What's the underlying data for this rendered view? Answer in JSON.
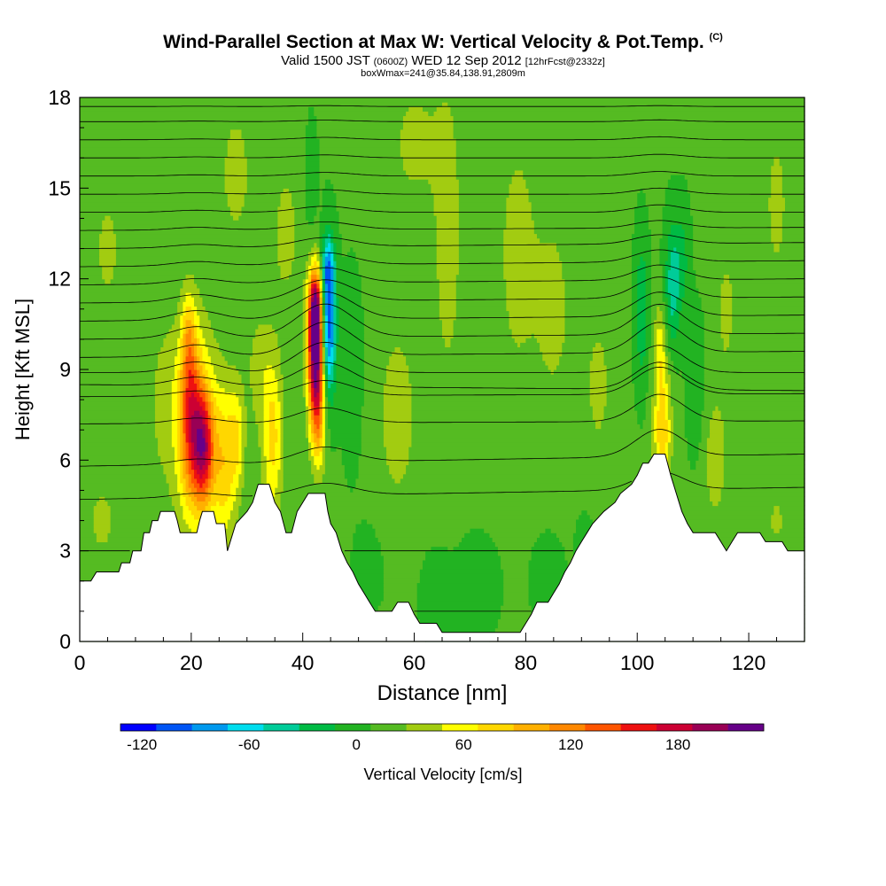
{
  "titles": {
    "main": "Wind-Parallel Section at Max W: Vertical Velocity & Pot.Temp.",
    "copyright": "(C)",
    "valid_prefix": "Valid 1500 JST",
    "valid_utc": "(0600Z)",
    "valid_date": "WED 12 Sep 2012",
    "forecast": "[12hrFcst@2332z]",
    "box": "boxWmax=241@35.84,138.91,2809m"
  },
  "chart_data": {
    "type": "heatmap",
    "xlabel": "Distance [nm]",
    "ylabel": "Height [Kft MSL]",
    "xlim": [
      0,
      130
    ],
    "ylim": [
      0,
      18
    ],
    "x_ticks": [
      0,
      20,
      40,
      60,
      80,
      100,
      120
    ],
    "y_ticks": [
      0,
      3,
      6,
      9,
      12,
      15,
      18
    ],
    "background_velocity": 10,
    "colorbar": {
      "label": "Vertical Velocity [cm/s]",
      "tick_values": [
        -120,
        -60,
        0,
        60,
        120,
        180
      ],
      "min": -132,
      "step": 20,
      "colors": [
        "#0000ff",
        "#0055f5",
        "#0099ee",
        "#00ddee",
        "#00cc99",
        "#00bb44",
        "#22b322",
        "#55bb22",
        "#a2cc11",
        "#ffff00",
        "#ffd700",
        "#ffb000",
        "#ff8800",
        "#ff5500",
        "#ee1111",
        "#cc0033",
        "#990055",
        "#660088"
      ]
    },
    "terrain_height": [
      [
        0,
        2.0
      ],
      [
        2,
        2.0
      ],
      [
        3,
        2.3
      ],
      [
        7,
        2.3
      ],
      [
        7.5,
        2.6
      ],
      [
        9,
        2.6
      ],
      [
        9.5,
        3.0
      ],
      [
        11,
        3.0
      ],
      [
        11.5,
        3.6
      ],
      [
        12.5,
        3.6
      ],
      [
        13,
        4.0
      ],
      [
        14,
        4.0
      ],
      [
        14.5,
        4.3
      ],
      [
        17,
        4.3
      ],
      [
        17.5,
        4.0
      ],
      [
        18,
        3.6
      ],
      [
        21,
        3.6
      ],
      [
        21.5,
        4.0
      ],
      [
        22,
        4.3
      ],
      [
        24,
        4.3
      ],
      [
        24.5,
        3.9
      ],
      [
        26,
        3.9
      ],
      [
        26.5,
        3.0
      ],
      [
        27,
        3.3
      ],
      [
        28,
        3.9
      ],
      [
        30,
        4.3
      ],
      [
        31,
        4.6
      ],
      [
        32,
        5.2
      ],
      [
        34,
        5.2
      ],
      [
        35,
        4.6
      ],
      [
        36,
        4.3
      ],
      [
        37,
        3.6
      ],
      [
        38,
        3.6
      ],
      [
        39,
        4.3
      ],
      [
        40,
        4.6
      ],
      [
        41,
        4.9
      ],
      [
        44,
        4.9
      ],
      [
        44.5,
        4.3
      ],
      [
        45,
        3.9
      ],
      [
        46,
        3.6
      ],
      [
        47,
        3.0
      ],
      [
        48,
        2.6
      ],
      [
        49,
        2.3
      ],
      [
        50,
        1.9
      ],
      [
        51,
        1.6
      ],
      [
        52,
        1.3
      ],
      [
        53,
        1.0
      ],
      [
        56,
        1.0
      ],
      [
        57,
        1.3
      ],
      [
        59,
        1.3
      ],
      [
        60,
        0.9
      ],
      [
        61,
        0.6
      ],
      [
        64,
        0.6
      ],
      [
        65,
        0.3
      ],
      [
        79,
        0.3
      ],
      [
        80,
        0.6
      ],
      [
        81,
        0.9
      ],
      [
        82,
        1.3
      ],
      [
        84,
        1.3
      ],
      [
        85,
        1.6
      ],
      [
        86,
        1.9
      ],
      [
        87,
        2.3
      ],
      [
        88,
        2.6
      ],
      [
        89,
        3.0
      ],
      [
        90,
        3.3
      ],
      [
        91,
        3.6
      ],
      [
        92,
        3.9
      ],
      [
        94,
        4.3
      ],
      [
        96,
        4.6
      ],
      [
        97,
        4.9
      ],
      [
        99,
        5.2
      ],
      [
        100,
        5.5
      ],
      [
        101,
        5.9
      ],
      [
        102,
        5.9
      ],
      [
        103,
        6.2
      ],
      [
        105,
        6.2
      ],
      [
        106,
        5.5
      ],
      [
        107,
        4.9
      ],
      [
        108,
        4.3
      ],
      [
        109,
        3.9
      ],
      [
        110,
        3.6
      ],
      [
        114,
        3.6
      ],
      [
        115,
        3.3
      ],
      [
        116,
        3.0
      ],
      [
        117,
        3.3
      ],
      [
        118,
        3.6
      ],
      [
        122,
        3.6
      ],
      [
        123,
        3.3
      ],
      [
        126,
        3.3
      ],
      [
        127,
        3.0
      ],
      [
        130,
        3.0
      ]
    ],
    "velocity_blobs": [
      {
        "x": 42.3,
        "y": 9.8,
        "sx": 1.0,
        "sy": 1.6,
        "w": 230
      },
      {
        "x": 42.2,
        "y": 11.2,
        "sx": 0.8,
        "sy": 0.7,
        "w": 80
      },
      {
        "x": 44.6,
        "y": 10.5,
        "sx": 0.9,
        "sy": 1.7,
        "w": -120
      },
      {
        "x": 44.5,
        "y": 12.4,
        "sx": 0.8,
        "sy": 0.7,
        "w": -55
      },
      {
        "x": 42.8,
        "y": 7.3,
        "sx": 1.0,
        "sy": 1.2,
        "w": 70
      },
      {
        "x": 19.8,
        "y": 7.6,
        "sx": 1.4,
        "sy": 1.9,
        "w": 100
      },
      {
        "x": 22.2,
        "y": 6.4,
        "sx": 1.3,
        "sy": 1.3,
        "w": 130
      },
      {
        "x": 21.0,
        "y": 7.0,
        "sx": 3.0,
        "sy": 2.6,
        "w": 55
      },
      {
        "x": 19.5,
        "y": 10.2,
        "sx": 0.8,
        "sy": 1.0,
        "w": 40
      },
      {
        "x": 26.0,
        "y": 5.8,
        "sx": 1.5,
        "sy": 1.8,
        "w": 60
      },
      {
        "x": 28.2,
        "y": 6.8,
        "sx": 1.0,
        "sy": 1.3,
        "w": 45
      },
      {
        "x": 34.6,
        "y": 6.8,
        "sx": 1.3,
        "sy": 1.9,
        "w": 65
      },
      {
        "x": 104.5,
        "y": 7.0,
        "sx": 1.1,
        "sy": 1.6,
        "w": 75
      },
      {
        "x": 100.8,
        "y": 11.0,
        "sx": 0.8,
        "sy": 1.6,
        "w": -42
      },
      {
        "x": 106.3,
        "y": 11.8,
        "sx": 0.9,
        "sy": 1.4,
        "w": -52
      },
      {
        "x": 108.0,
        "y": 12.6,
        "sx": 0.9,
        "sy": 1.2,
        "w": -30
      },
      {
        "x": 104.0,
        "y": 9.8,
        "sx": 0.7,
        "sy": 1.0,
        "w": 40
      },
      {
        "x": 48.8,
        "y": 9.0,
        "sx": 1.2,
        "sy": 2.0,
        "w": -15
      },
      {
        "x": 57.0,
        "y": 7.5,
        "sx": 2.5,
        "sy": 2.2,
        "w": 30
      },
      {
        "x": 66.0,
        "y": 13.5,
        "sx": 2.0,
        "sy": 4.0,
        "w": 28
      },
      {
        "x": 78.5,
        "y": 12.8,
        "sx": 2.5,
        "sy": 3.0,
        "w": 28
      },
      {
        "x": 85.0,
        "y": 11.0,
        "sx": 2.5,
        "sy": 2.5,
        "w": 25
      },
      {
        "x": 60.0,
        "y": 16.5,
        "sx": 3.0,
        "sy": 1.5,
        "w": 25
      },
      {
        "x": 28.0,
        "y": 15.5,
        "sx": 2.5,
        "sy": 2.0,
        "w": 24
      },
      {
        "x": 37.0,
        "y": 13.5,
        "sx": 2.0,
        "sy": 2.0,
        "w": 24
      },
      {
        "x": 125.0,
        "y": 14.5,
        "sx": 2.0,
        "sy": 2.5,
        "w": 22
      },
      {
        "x": 5.0,
        "y": 13.0,
        "sx": 3.0,
        "sy": 2.5,
        "w": 20
      },
      {
        "x": 4.0,
        "y": 4.0,
        "sx": 2.5,
        "sy": 1.2,
        "w": 22
      },
      {
        "x": 114.0,
        "y": 6.0,
        "sx": 1.5,
        "sy": 1.5,
        "w": 30
      },
      {
        "x": 93.0,
        "y": 8.5,
        "sx": 1.5,
        "sy": 1.5,
        "w": 28
      },
      {
        "x": 64.0,
        "y": 1.5,
        "sx": 2.0,
        "sy": 1.0,
        "w": -10
      },
      {
        "x": 71.0,
        "y": 1.8,
        "sx": 3.0,
        "sy": 1.2,
        "w": -8
      },
      {
        "x": 84.0,
        "y": 2.0,
        "sx": 2.0,
        "sy": 1.0,
        "w": -10
      },
      {
        "x": 90.5,
        "y": 2.8,
        "sx": 1.0,
        "sy": 0.8,
        "w": -15
      },
      {
        "x": 52.0,
        "y": 2.5,
        "sx": 2.0,
        "sy": 1.0,
        "w": -8
      },
      {
        "x": 125.0,
        "y": 4.0,
        "sx": 2.0,
        "sy": 1.0,
        "w": 20
      },
      {
        "x": 41.5,
        "y": 14.8,
        "sx": 0.8,
        "sy": 1.5,
        "w": -15
      },
      {
        "x": 110.5,
        "y": 8.5,
        "sx": 1.0,
        "sy": 1.5,
        "w": -20
      },
      {
        "x": 116.0,
        "y": 11.0,
        "sx": 1.5,
        "sy": 2.0,
        "w": 22
      },
      {
        "x": 32.0,
        "y": 9.0,
        "sx": 1.5,
        "sy": 1.5,
        "w": 25
      },
      {
        "x": 15.0,
        "y": 8.0,
        "sx": 2.0,
        "sy": 2.0,
        "w": 22
      }
    ],
    "theta_contours": [
      {
        "base": 1.0,
        "upper": 1.0,
        "a1": 0.0,
        "a2": 0.0,
        "w": 1.0
      },
      {
        "base": 3.0,
        "upper": 3.0,
        "a1": 0.0,
        "a2": 0.0,
        "w": 1.0
      },
      {
        "base": 4.7,
        "upper": 5.1,
        "a1": 0.4,
        "a2": 0.6,
        "w": 1.0
      },
      {
        "base": 5.8,
        "upper": 6.2,
        "a1": 0.5,
        "a2": 0.9,
        "w": 1.0
      },
      {
        "base": 7.2,
        "upper": 7.3,
        "a1": 0.5,
        "a2": 0.9,
        "w": 1.0
      },
      {
        "base": 8.1,
        "upper": 8.2,
        "a1": 0.5,
        "a2": 0.9,
        "w": 1.0
      },
      {
        "base": 8.5,
        "upper": 8.3,
        "a1": 0.8,
        "a2": 0.9,
        "w": 1.0
      },
      {
        "base": 8.9,
        "upper": 8.9,
        "a1": 1.0,
        "a2": 0.9,
        "w": 1.0
      },
      {
        "base": 9.4,
        "upper": 9.6,
        "a1": 1.1,
        "a2": 1.0,
        "w": 1.0
      },
      {
        "base": 10.0,
        "upper": 10.2,
        "a1": 1.1,
        "a2": 1.0,
        "w": 1.0
      },
      {
        "base": 10.6,
        "upper": 10.8,
        "a1": 0.9,
        "a2": 0.8,
        "w": 1.0
      },
      {
        "base": 11.2,
        "upper": 11.4,
        "a1": 0.7,
        "a2": 0.7,
        "w": 1.0
      },
      {
        "base": 11.8,
        "upper": 12.0,
        "a1": 0.5,
        "a2": 0.5,
        "w": 1.0
      },
      {
        "base": 12.4,
        "upper": 12.6,
        "a1": 0.4,
        "a2": 0.4,
        "w": 1.0
      },
      {
        "base": 13.0,
        "upper": 13.2,
        "a1": 0.3,
        "a2": 0.3,
        "w": 1.0
      },
      {
        "base": 13.6,
        "upper": 13.7,
        "a1": 0.25,
        "a2": 0.25,
        "w": 1.0
      },
      {
        "base": 14.2,
        "upper": 14.2,
        "a1": 0.2,
        "a2": 0.25,
        "w": 1.0
      },
      {
        "base": 14.8,
        "upper": 14.8,
        "a1": 0.15,
        "a2": 0.2,
        "w": 1.0
      },
      {
        "base": 15.4,
        "upper": 15.4,
        "a1": 0.12,
        "a2": 0.15,
        "w": 1.0
      },
      {
        "base": 16.0,
        "upper": 16.0,
        "a1": 0.1,
        "a2": 0.12,
        "w": 1.0
      },
      {
        "base": 16.6,
        "upper": 16.6,
        "a1": 0.08,
        "a2": 0.1,
        "w": 1.0
      },
      {
        "base": 17.2,
        "upper": 17.2,
        "a1": 0.05,
        "a2": 0.06,
        "w": 1.0
      },
      {
        "base": 17.7,
        "upper": 17.7,
        "a1": 0.03,
        "a2": 0.03,
        "w": 1.0
      }
    ]
  }
}
